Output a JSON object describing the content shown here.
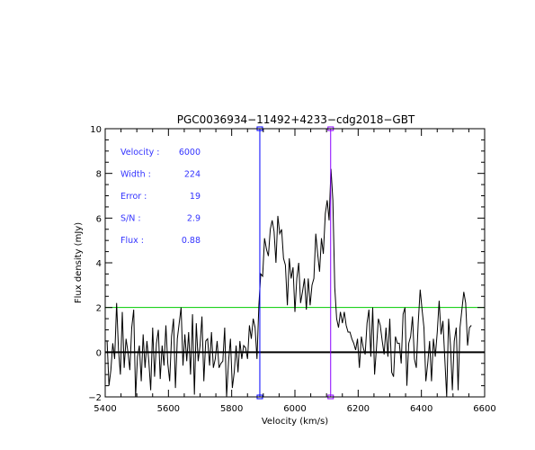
{
  "chart_data": {
    "type": "line",
    "title": "PGC0036934−11492+4233−cdg2018−GBT",
    "xlabel": "Velocity (km/s)",
    "ylabel": "Flux density (mJy)",
    "xlim": [
      5400,
      6600
    ],
    "ylim": [
      -2,
      10
    ],
    "x_ticks": [
      5400,
      5600,
      5800,
      6000,
      6200,
      6400,
      6600
    ],
    "x_tick_labels": [
      "5400",
      "5600",
      "5800",
      "6000",
      "6200",
      "6400",
      "6600"
    ],
    "y_ticks": [
      -2,
      0,
      2,
      4,
      6,
      8,
      10
    ],
    "y_tick_labels": [
      "−2",
      "0",
      "2",
      "4",
      "6",
      "8",
      "10"
    ],
    "grid": false,
    "series": [
      {
        "color": "#000000",
        "x_start": 5400,
        "x_step": 6,
        "values": [
          0.5,
          0.5,
          -1.5,
          -0.8,
          0.4,
          -0.3,
          2.2,
          0.1,
          -1.0,
          1.8,
          -0.7,
          0.6,
          0.0,
          -0.8,
          1.1,
          1.9,
          -2.0,
          -0.2,
          0.3,
          -1.3,
          0.8,
          -0.7,
          0.5,
          -0.4,
          -1.7,
          1.1,
          -1.1,
          0.4,
          1.0,
          -1.2,
          0.3,
          -0.6,
          1.2,
          -0.5,
          -1.3,
          0.7,
          1.5,
          -1.6,
          0.6,
          1.3,
          2.0,
          -0.6,
          0.8,
          -0.4,
          0.9,
          -1.0,
          1.7,
          -1.9,
          1.3,
          -0.4,
          0.3,
          1.6,
          -1.3,
          0.5,
          0.6,
          -0.6,
          0.9,
          -0.7,
          -0.3,
          0.5,
          -0.7,
          -0.5,
          -0.4,
          1.1,
          -2.0,
          -0.4,
          0.6,
          -1.6,
          -0.9,
          0.3,
          -0.9,
          0.5,
          -0.3,
          0.3,
          0.2,
          -0.3,
          1.2,
          0.6,
          1.5,
          1.1,
          -0.3,
          2.1,
          3.5,
          3.4,
          5.1,
          4.6,
          4.3,
          5.5,
          5.9,
          5.4,
          4.0,
          6.1,
          5.3,
          5.5,
          4.2,
          3.9,
          2.1,
          4.2,
          3.3,
          3.8,
          1.8,
          3.3,
          4.0,
          2.2,
          2.7,
          3.3,
          1.9,
          3.3,
          2.1,
          3.0,
          3.3,
          5.3,
          4.4,
          3.6,
          5.1,
          4.4,
          6.2,
          6.8,
          5.9,
          8.2,
          6.8,
          2.9,
          1.5,
          1.1,
          1.8,
          1.3,
          1.8,
          1.2,
          0.9,
          0.9,
          0.6,
          0.4,
          0.1,
          0.6,
          -0.7,
          0.7,
          0.2,
          -0.1,
          1.3,
          1.9,
          -0.2,
          2.0,
          -1.0,
          0.2,
          1.5,
          1.2,
          0.5,
          -0.1,
          1.1,
          -0.2,
          1.5,
          -0.9,
          -1.1,
          0.7,
          0.4,
          0.4,
          -0.5,
          1.7,
          2.0,
          -1.5,
          0.4,
          0.7,
          1.6,
          -0.3,
          -0.7,
          1.3,
          2.8,
          1.9,
          1.1,
          -1.3,
          -0.5,
          0.5,
          -1.3,
          0.6,
          -0.2,
          0.9,
          2.3,
          0.8,
          1.4,
          -0.3,
          -2.0,
          1.5,
          0.3,
          -1.7,
          0.5,
          1.1,
          -1.7,
          1.1,
          1.9,
          2.7,
          2.2,
          0.3,
          1.1,
          1.2
        ]
      },
      {
        "color": "#00cc00",
        "constant": 2.0
      },
      {
        "color": "#000000",
        "constant": 0.0
      }
    ],
    "markers": [
      {
        "x": 5889,
        "color": "#0000ff"
      },
      {
        "x": 6113,
        "color": "#8b00ff"
      }
    ],
    "annotations": [
      {
        "label": "Velocity :",
        "value": "6000"
      },
      {
        "label": "Width :",
        "value": "224"
      },
      {
        "label": "Error :",
        "value": "19"
      },
      {
        "label": "S/N :",
        "value": "2.9"
      },
      {
        "label": "Flux :",
        "value": "0.88"
      }
    ],
    "annotation_color": "#3333ff"
  }
}
